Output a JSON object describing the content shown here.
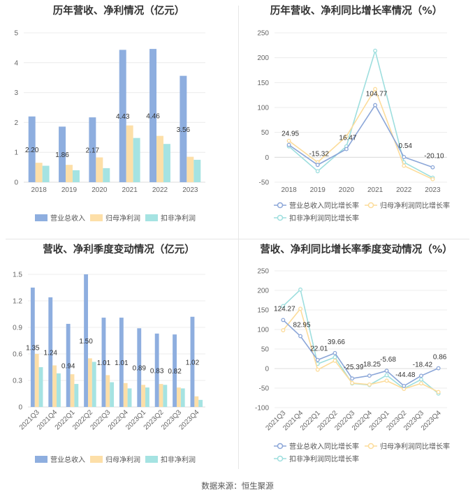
{
  "source": "数据来源：恒生聚源",
  "chart_data": [
    {
      "type": "bar",
      "title": "历年营收、净利情况（亿元）",
      "categories": [
        "2018",
        "2019",
        "2020",
        "2021",
        "2022",
        "2023"
      ],
      "ylim": [
        0,
        5
      ],
      "yticks": [
        0,
        1,
        2,
        3,
        4,
        5
      ],
      "legend_position": "bottom",
      "series": [
        {
          "name": "营业总收入",
          "color": "#8eaedf",
          "values": [
            2.2,
            1.86,
            2.17,
            4.43,
            4.46,
            3.56
          ],
          "labels": [
            "2.20",
            "1.86",
            "2.17",
            "4.43",
            "4.46",
            "3.56"
          ]
        },
        {
          "name": "归母净利润",
          "color": "#fddfa8",
          "values": [
            0.65,
            0.58,
            0.83,
            1.9,
            1.55,
            0.85
          ]
        },
        {
          "name": "扣非净利润",
          "color": "#a5e3e2",
          "values": [
            0.55,
            0.4,
            0.47,
            1.48,
            1.28,
            0.75
          ]
        }
      ]
    },
    {
      "type": "line",
      "title": "历年营收、净利同比增长率情况（%）",
      "categories": [
        "2018",
        "2019",
        "2020",
        "2021",
        "2022",
        "2023"
      ],
      "ylim": [
        -50,
        250
      ],
      "yticks": [
        -50,
        0,
        50,
        100,
        150,
        200,
        250
      ],
      "legend_position": "bottom",
      "series": [
        {
          "name": "营业总收入同比增长率",
          "color": "#8ba6d8",
          "values": [
            24.95,
            -15.32,
            16.47,
            104.77,
            0.54,
            -20.1
          ],
          "labels": [
            "24.95",
            "-15.32",
            "16.47",
            "104.77",
            "0.54",
            "-20.10"
          ]
        },
        {
          "name": "归母净利润同比增长率",
          "color": "#fcdc9a",
          "values": [
            33,
            -10,
            42,
            137,
            -17,
            -44
          ]
        },
        {
          "name": "扣非净利润同比增长率",
          "color": "#9ddede",
          "values": [
            22,
            -28,
            22,
            214,
            -10,
            -41
          ]
        }
      ]
    },
    {
      "type": "bar",
      "title": "营收、净利季度变动情况（亿元）",
      "categories": [
        "2021Q3",
        "2021Q4",
        "2022Q1",
        "2022Q2",
        "2022Q3",
        "2022Q4",
        "2023Q1",
        "2023Q2",
        "2023Q3",
        "2023Q4"
      ],
      "ylim": [
        0,
        1.5
      ],
      "yticks": [
        0,
        0.3,
        0.6,
        0.9,
        1.2,
        1.5
      ],
      "legend_position": "bottom",
      "series": [
        {
          "name": "营业总收入",
          "color": "#8eaedf",
          "values": [
            1.35,
            1.24,
            0.94,
            1.5,
            1.01,
            1.01,
            0.89,
            0.83,
            0.82,
            1.02
          ],
          "labels": [
            "1.35",
            "1.24",
            "0.94",
            "1.50",
            "1.01",
            "1.01",
            "0.89",
            "0.83",
            "0.82",
            "1.02"
          ]
        },
        {
          "name": "归母净利润",
          "color": "#fddfa8",
          "values": [
            0.6,
            0.47,
            0.37,
            0.55,
            0.36,
            0.27,
            0.25,
            0.26,
            0.22,
            0.12
          ]
        },
        {
          "name": "扣非净利润",
          "color": "#a5e3e2",
          "values": [
            0.45,
            0.38,
            0.26,
            0.51,
            0.28,
            0.21,
            0.22,
            0.25,
            0.21,
            0.08
          ]
        }
      ]
    },
    {
      "type": "line",
      "title": "营收、净利同比增长率季度变动情况（%）",
      "categories": [
        "2021Q3",
        "2021Q4",
        "2022Q1",
        "2022Q2",
        "2022Q3",
        "2022Q4",
        "2023Q1",
        "2023Q2",
        "2023Q3",
        "2023Q4"
      ],
      "ylim": [
        -100,
        250
      ],
      "yticks": [
        -100,
        -50,
        0,
        50,
        100,
        150,
        200,
        250
      ],
      "legend_position": "bottom",
      "series": [
        {
          "name": "营业总收入同比增长率",
          "color": "#8ba6d8",
          "values": [
            124.27,
            82.95,
            22.01,
            39.66,
            -25.39,
            -18.25,
            -5.68,
            -44.48,
            -18.42,
            0.86
          ],
          "labels": [
            "124.27",
            "82.95",
            "22.01",
            "39.66",
            "-25.39",
            "-18.25",
            "-5.68",
            "-44.48",
            "-18.42",
            "0.86"
          ]
        },
        {
          "name": "归母净利润同比增长率",
          "color": "#fcdc9a",
          "values": [
            98,
            153,
            -3,
            20,
            -37,
            -41,
            -31,
            -52,
            -38,
            -60
          ]
        },
        {
          "name": "扣非净利润同比增长率",
          "color": "#9ddede",
          "values": [
            160,
            202,
            12,
            29,
            -38,
            -42,
            -17,
            -51,
            -28,
            -64
          ]
        }
      ]
    }
  ]
}
